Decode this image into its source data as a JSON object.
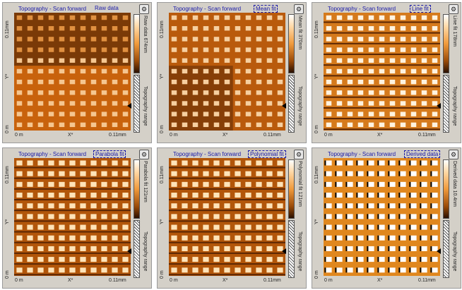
{
  "panels": [
    {
      "title": "Topography - Scan forward",
      "mode": "Raw data",
      "boxed": false,
      "cbar": "Raw data 674nm",
      "ytop": "0.11mm",
      "ybottom": "0 m",
      "yaxis": "Y*",
      "xleft": "0 m",
      "xmid": "X*",
      "xright": "0.11mm",
      "range": "Topography range"
    },
    {
      "title": "Topography - Scan forward",
      "mode": "Mean fit",
      "boxed": true,
      "cbar": "Mean fit 370nm",
      "ytop": "0.11mm",
      "ybottom": "0 m",
      "yaxis": "Y*",
      "xleft": "0 m",
      "xmid": "X*",
      "xright": "0.11mm",
      "range": "Topography range"
    },
    {
      "title": "Topography - Scan forward",
      "mode": "Line fit",
      "boxed": true,
      "cbar": "Line fit 178nm",
      "ytop": "0.11mm",
      "ybottom": "0 m",
      "yaxis": "Y*",
      "xleft": "0 m",
      "xmid": "X*",
      "xright": "0.11mm",
      "range": "Topography range"
    },
    {
      "title": "Topography - Scan forward",
      "mode": "Parabola fit",
      "boxed": true,
      "cbar": "Parabola fit 121nm",
      "ytop": "0.11mm",
      "ybottom": "0 m",
      "yaxis": "Y*",
      "xleft": "0 m",
      "xmid": "X*",
      "xright": "0.11mm",
      "range": "Topography range"
    },
    {
      "title": "Topography - Scan forward",
      "mode": "Polynomial fit",
      "boxed": true,
      "cbar": "Polynomial fit 121nm",
      "ytop": "0.11mm",
      "ybottom": "0 m",
      "yaxis": "Y*",
      "xleft": "0 m",
      "xmid": "X*",
      "xright": "0.11mm",
      "range": "Topography range"
    },
    {
      "title": "Topography - Scan forward",
      "mode": "Derived data",
      "boxed": true,
      "cbar": "Derived data 10.4nm",
      "ytop": "0.11mm",
      "ybottom": "0 m",
      "yaxis": "Y*",
      "xleft": "0 m",
      "xmid": "X*",
      "xright": "0.11mm",
      "range": "Topography range"
    }
  ],
  "colors": {
    "panel_bg": "#d4d0c8",
    "label": "#1a1aa8",
    "grid_dark": "#6b2e05",
    "grid_light": "#ffe3b8"
  },
  "icons": {
    "settings": "gear-icon",
    "range_pointer": "triangle-left-icon"
  }
}
